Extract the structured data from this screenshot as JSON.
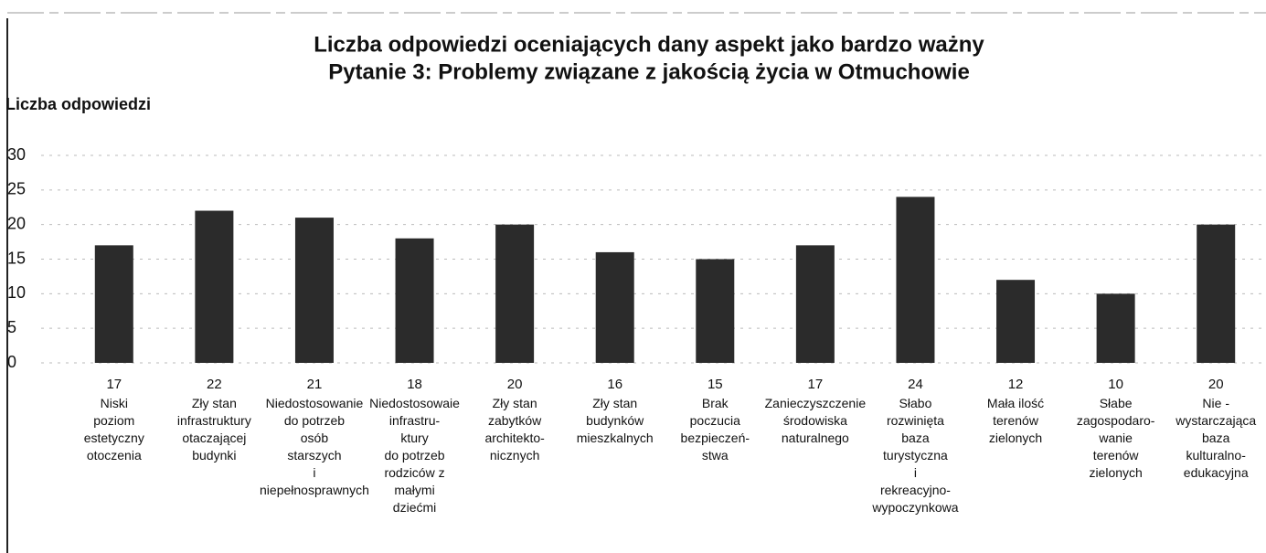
{
  "chart_data": {
    "type": "bar",
    "title": "Liczba odpowiedzi oceniających dany aspekt jako bardzo ważny",
    "subtitle": "Pytanie 3: Problemy związane z jakością życia w Otmuchowie",
    "y_axis_label": "Liczba odpowiedzi",
    "categories": [
      "Niski\npoziom\nestetyczny\notoczenia",
      "Zły stan\ninfrastruktury\notaczającej\nbudynki",
      "Niedostosowanie\ndo potrzeb\nosób\nstarszych\ni\nniepełnosprawnych",
      "Niedostosowaie\ninfrastru-\nktury\ndo potrzeb\nrodziców z\nmałymi\ndziećmi",
      "Zły stan\nzabytków\narchitekto-\nnicznych",
      "Zły stan\nbudynków\nmieszkalnych",
      "Brak\npoczucia\nbezpieczeń-\nstwa",
      "Zanieczyszczenie\nśrodowiska\nnaturalnego",
      "Słabo\nrozwinięta\nbaza\nturystyczna\ni\nrekreacyjno-\nwypoczynkowa",
      "Mała ilość\nterenów\nzielonych",
      "Słabe\nzagospodaro-\nwanie\nterenów\nzielonych",
      "Nie -\nwystarczająca\nbaza\nkulturalno-\nedukacyjna"
    ],
    "values": [
      17,
      22,
      21,
      18,
      20,
      16,
      15,
      17,
      24,
      12,
      10,
      20
    ],
    "color": "#2b2b2b",
    "ylim": [
      0,
      30
    ],
    "yticks": [
      0,
      5,
      10,
      15,
      20,
      25,
      30
    ],
    "grid": true
  }
}
